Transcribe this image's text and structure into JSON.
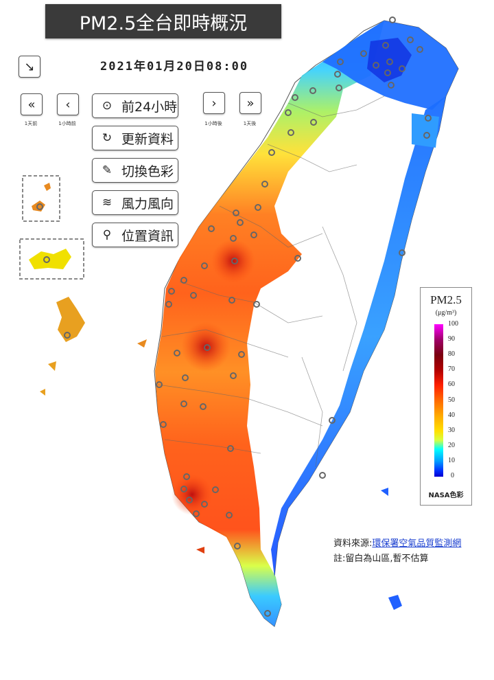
{
  "header": {
    "title": "PM2.5全台即時概況",
    "datetime": "2021年01月20日08:00"
  },
  "nav": {
    "day_back_caption": "1天前",
    "hour_back_caption": "1小時前",
    "hour_forward_caption": "1小時後",
    "day_forward_caption": "1天後"
  },
  "menu": {
    "past24": "前24小時",
    "refresh": "更新資料",
    "colors": "切換色彩",
    "wind": "風力風向",
    "location": "位置資訊"
  },
  "legend": {
    "title": "PM2.5",
    "unit": "(μg/m³)",
    "ticks": [
      "100",
      "90",
      "80",
      "70",
      "60",
      "50",
      "40",
      "30",
      "20",
      "10",
      "0"
    ],
    "footer": "NASA色彩",
    "colors": [
      "#ff00ff",
      "#a0006a",
      "#7a0010",
      "#b00000",
      "#ff2000",
      "#ff6a00",
      "#ffaa00",
      "#ffe000",
      "#00ffff",
      "#009cff",
      "#0000d0"
    ]
  },
  "footer": {
    "source_label": "資料來源:",
    "source_link": "環保署空氣品質監測網",
    "note": "註:留白為山區,暫不估算"
  }
}
